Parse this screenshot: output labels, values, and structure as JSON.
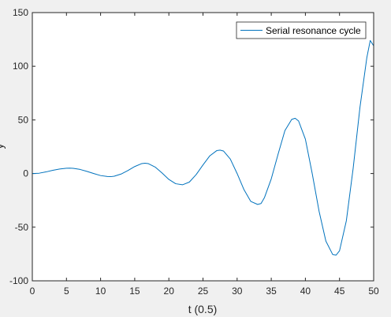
{
  "chart_data": {
    "type": "line",
    "title": "",
    "xlabel": "t (0.5)",
    "ylabel": "y",
    "xlim": [
      0,
      50
    ],
    "ylim": [
      -100,
      150
    ],
    "xticks": [
      0,
      5,
      10,
      15,
      20,
      25,
      30,
      35,
      40,
      45,
      50
    ],
    "yticks": [
      -100,
      -50,
      0,
      50,
      100,
      150
    ],
    "grid": false,
    "legend_position": "top-right",
    "colors": {
      "series": "#0072bd",
      "axis": "#262626",
      "plot_bg": "#ffffff",
      "figure_bg": "#f0f0f0"
    },
    "series": [
      {
        "name": "Serial resonance cycle",
        "x": [
          0,
          1,
          2,
          3,
          4,
          5,
          5.5,
          6,
          7,
          8,
          9,
          10,
          11,
          11.5,
          12,
          13,
          14,
          15,
          16,
          16.5,
          17,
          18,
          19,
          20,
          21,
          22,
          23,
          24,
          25,
          26,
          27,
          27.5,
          28,
          29,
          30,
          31,
          32,
          33,
          33.5,
          34,
          35,
          36,
          37,
          38,
          38.5,
          39,
          40,
          41,
          42,
          43,
          44,
          44.5,
          45,
          46,
          47,
          48,
          49,
          49.5,
          50
        ],
        "values": [
          0,
          0.3,
          1.5,
          3,
          4.2,
          4.9,
          5,
          4.8,
          3.8,
          2,
          0,
          -1.9,
          -2.8,
          -2.9,
          -2.5,
          -0.5,
          2.8,
          6.5,
          9.2,
          9.6,
          9.2,
          6,
          0.5,
          -5.5,
          -9.5,
          -10.5,
          -8,
          -1,
          8,
          16.5,
          21.3,
          21.8,
          21,
          13.5,
          0,
          -15,
          -26,
          -28.8,
          -28,
          -22.5,
          -5,
          18,
          40,
          50.5,
          51.5,
          49,
          32,
          0,
          -35,
          -63,
          -75.5,
          -76,
          -72,
          -44,
          5,
          62,
          108,
          124,
          119
        ]
      }
    ]
  }
}
